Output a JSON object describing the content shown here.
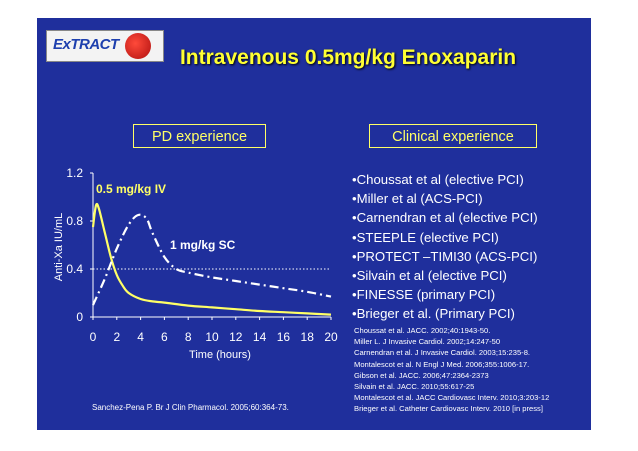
{
  "logo": {
    "text": "ExTRACT",
    "icon": "globe-icon"
  },
  "title": "Intravenous 0.5mg/kg Enoxaparin",
  "pd_label": "PD experience",
  "clinical_label": "Clinical experience",
  "bullets": [
    "•Choussat et al (elective PCI)",
    "•Miller et al (ACS-PCI)",
    "•Carnendran et al (elective PCI)",
    "•STEEPLE (elective PCI)",
    "•PROTECT –TIMI30 (ACS-PCI)",
    "•Silvain et al (elective PCI)",
    "•FINESSE (primary PCI)",
    "•Brieger et al. (Primary PCI)"
  ],
  "references": [
    "Choussat et al. JACC. 2002;40:1943-50.",
    "Miller L. J Invasive Cardiol. 2002;14:247-50",
    "Carnendran et al. J Invasive Cardiol. 2003;15:235-8.",
    "Montalescot et al. N Engl J Med. 2006;355:1006-17.",
    "Gibson et al. JACC. 2006;47:2364-2373",
    "Silvain et al. JACC. 2010;55:617-25",
    "Montalescot et al. JACC Cardiovasc Interv. 2010;3:203-12",
    "Brieger et al. Catheter Cardiovasc Interv. 2010 [in press]"
  ],
  "source": "Sanchez-Pena P. Br J Clin Pharmacol. 2005;60:364-73.",
  "colors": {
    "background": "#1f2f9c",
    "title": "#ffff33",
    "iv_curve": "#ffff66",
    "sc_curve": "#ffffff"
  },
  "chart_data": {
    "type": "line",
    "xlabel": "Time (hours)",
    "ylabel": "Anti-Xa IU/mL",
    "xlim": [
      0,
      20
    ],
    "ylim": [
      0,
      1.2
    ],
    "x_ticks": [
      "0",
      "2",
      "4",
      "6",
      "8",
      "10",
      "12",
      "14",
      "16",
      "18",
      "20"
    ],
    "y_ticks": [
      "0",
      "0.4",
      "0.8",
      "1.2"
    ],
    "reference_line": {
      "y": 0.4,
      "style": "dotted"
    },
    "series": [
      {
        "name": "0.5 mg/kg IV",
        "style": "solid",
        "x": [
          0,
          0.25,
          0.5,
          1,
          1.5,
          2,
          2.5,
          3,
          4,
          5,
          6,
          8,
          10,
          12,
          14,
          16,
          18,
          20
        ],
        "y": [
          0.75,
          0.93,
          0.9,
          0.7,
          0.5,
          0.35,
          0.26,
          0.2,
          0.15,
          0.13,
          0.12,
          0.095,
          0.08,
          0.065,
          0.05,
          0.04,
          0.03,
          0.02
        ]
      },
      {
        "name": "1 mg/kg SC",
        "style": "dash-dot",
        "x": [
          0,
          1,
          2,
          3,
          3.8,
          4.5,
          5,
          6,
          7,
          8,
          10,
          12,
          14,
          16,
          18,
          20
        ],
        "y": [
          0.1,
          0.32,
          0.57,
          0.77,
          0.85,
          0.82,
          0.7,
          0.5,
          0.4,
          0.37,
          0.33,
          0.3,
          0.27,
          0.24,
          0.21,
          0.17
        ]
      }
    ]
  }
}
